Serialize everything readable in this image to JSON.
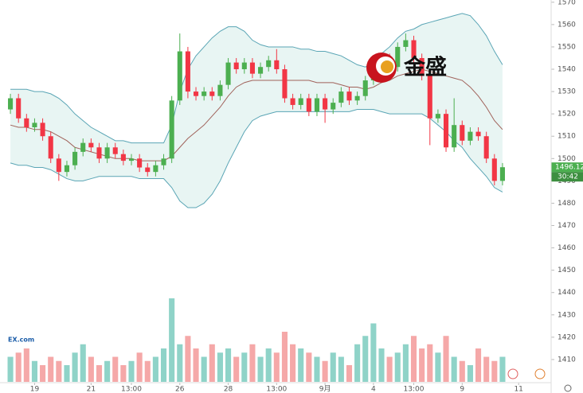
{
  "chart_data": {
    "type": "candlestick",
    "open": [
      1522,
      1527,
      1518,
      1514,
      1516,
      1510,
      1500,
      1494,
      1497,
      1503,
      1507,
      1505,
      1500,
      1505,
      1502,
      1499,
      1500,
      1496,
      1494,
      1497,
      1500,
      1526,
      1548,
      1530,
      1528,
      1530,
      1528,
      1533,
      1543,
      1540,
      1543,
      1538,
      1541,
      1544,
      1540,
      1527,
      1524,
      1527,
      1521,
      1527,
      1522,
      1525,
      1530,
      1526,
      1528,
      1535,
      1543,
      1545,
      1541,
      1550,
      1553,
      1545,
      1537,
      1518,
      1520,
      1505,
      1515,
      1508,
      1512,
      1510,
      1500,
      1490
    ],
    "high": [
      1529,
      1529,
      1520,
      1518,
      1518,
      1512,
      1502,
      1499,
      1505,
      1509,
      1509,
      1507,
      1507,
      1507,
      1504,
      1502,
      1502,
      1498,
      1499,
      1502,
      1528,
      1556,
      1550,
      1532,
      1532,
      1532,
      1535,
      1545,
      1545,
      1545,
      1545,
      1543,
      1546,
      1549,
      1542,
      1529,
      1529,
      1529,
      1529,
      1529,
      1527,
      1532,
      1532,
      1530,
      1537,
      1545,
      1547,
      1547,
      1552,
      1556,
      1555,
      1547,
      1539,
      1522,
      1522,
      1527,
      1517,
      1514,
      1514,
      1512,
      1502,
      1498
    ],
    "low": [
      1520,
      1516,
      1512,
      1512,
      1508,
      1498,
      1490,
      1492,
      1495,
      1501,
      1503,
      1498,
      1498,
      1500,
      1497,
      1497,
      1494,
      1492,
      1492,
      1495,
      1498,
      1524,
      1527,
      1526,
      1526,
      1526,
      1526,
      1531,
      1538,
      1538,
      1536,
      1536,
      1539,
      1538,
      1525,
      1522,
      1522,
      1519,
      1519,
      1516,
      1520,
      1523,
      1524,
      1524,
      1526,
      1533,
      1541,
      1539,
      1539,
      1548,
      1543,
      1535,
      1506,
      1516,
      1503,
      1503,
      1506,
      1506,
      1508,
      1498,
      1488,
      1488
    ],
    "close": [
      1527,
      1518,
      1514,
      1516,
      1510,
      1500,
      1494,
      1497,
      1503,
      1507,
      1505,
      1500,
      1505,
      1502,
      1499,
      1500,
      1496,
      1494,
      1497,
      1500,
      1526,
      1548,
      1530,
      1528,
      1530,
      1528,
      1533,
      1543,
      1540,
      1543,
      1538,
      1541,
      1544,
      1540,
      1527,
      1524,
      1527,
      1521,
      1527,
      1522,
      1525,
      1530,
      1526,
      1528,
      1535,
      1543,
      1545,
      1541,
      1550,
      1553,
      1545,
      1537,
      1518,
      1520,
      1505,
      1515,
      1508,
      1512,
      1510,
      1500,
      1490,
      1496.12
    ],
    "volume": [
      30,
      35,
      40,
      25,
      20,
      30,
      25,
      20,
      35,
      45,
      30,
      20,
      25,
      30,
      20,
      25,
      35,
      25,
      30,
      40,
      100,
      45,
      55,
      40,
      30,
      45,
      35,
      40,
      30,
      35,
      45,
      30,
      40,
      35,
      60,
      45,
      40,
      35,
      30,
      25,
      35,
      30,
      20,
      45,
      55,
      70,
      40,
      30,
      35,
      45,
      55,
      40,
      45,
      35,
      55,
      30,
      25,
      20,
      40,
      30,
      25,
      30
    ],
    "up_color": "#4caf50",
    "down_color": "#f23645",
    "volume_up_color": "#8fd3c8",
    "volume_down_color": "#f5a8a8",
    "bands": {
      "upper": [
        1531,
        1531,
        1531,
        1530,
        1530,
        1529,
        1527,
        1524,
        1520,
        1517,
        1514,
        1512,
        1510,
        1508,
        1508,
        1507,
        1507,
        1507,
        1507,
        1507,
        1515,
        1530,
        1540,
        1546,
        1550,
        1554,
        1557,
        1559,
        1559,
        1557,
        1553,
        1551,
        1550,
        1550,
        1550,
        1550,
        1549,
        1549,
        1548,
        1548,
        1547,
        1546,
        1544,
        1542,
        1541,
        1543,
        1547,
        1550,
        1554,
        1557,
        1558,
        1560,
        1561,
        1562,
        1563,
        1564,
        1565,
        1564,
        1560,
        1555,
        1548,
        1542
      ],
      "middle": [
        1515,
        1514,
        1514,
        1513,
        1513,
        1512,
        1510,
        1508,
        1505,
        1504,
        1503,
        1502,
        1501,
        1500,
        1500,
        1500,
        1499,
        1499,
        1499,
        1499,
        1501,
        1505,
        1509,
        1512,
        1515,
        1519,
        1523,
        1528,
        1532,
        1534,
        1535,
        1535,
        1535,
        1535,
        1535,
        1535,
        1535,
        1535,
        1534,
        1534,
        1534,
        1533,
        1532,
        1532,
        1531,
        1532,
        1534,
        1535,
        1537,
        1538,
        1539,
        1540,
        1539,
        1538,
        1537,
        1536,
        1535,
        1532,
        1528,
        1523,
        1517,
        1513
      ],
      "lower": [
        1498,
        1497,
        1497,
        1496,
        1496,
        1495,
        1493,
        1491,
        1490,
        1490,
        1491,
        1492,
        1492,
        1492,
        1492,
        1492,
        1491,
        1491,
        1491,
        1491,
        1487,
        1481,
        1478,
        1478,
        1480,
        1484,
        1490,
        1498,
        1505,
        1512,
        1517,
        1519,
        1520,
        1521,
        1521,
        1521,
        1521,
        1521,
        1521,
        1521,
        1521,
        1521,
        1521,
        1522,
        1522,
        1522,
        1521,
        1520,
        1520,
        1520,
        1520,
        1520,
        1518,
        1515,
        1512,
        1508,
        1505,
        1500,
        1496,
        1492,
        1487,
        1485
      ],
      "band_color": "#5aa5b5",
      "middle_color": "#a0625a",
      "fill_color": "#e8f5f3"
    },
    "ylim": [
      1400,
      1571
    ],
    "yticks": [
      1410,
      1420,
      1430,
      1440,
      1450,
      1460,
      1470,
      1480,
      1490,
      1500,
      1510,
      1520,
      1530,
      1540,
      1550,
      1560,
      1570
    ],
    "xticks": [
      {
        "value": 3,
        "label": "19"
      },
      {
        "value": 10,
        "label": "21"
      },
      {
        "value": 15,
        "label": "13:00"
      },
      {
        "value": 21,
        "label": "26"
      },
      {
        "value": 27,
        "label": "28"
      },
      {
        "value": 33,
        "label": "13:00"
      },
      {
        "value": 39,
        "label": "9月"
      },
      {
        "value": 45,
        "label": "4"
      },
      {
        "value": 50,
        "label": "13:00"
      },
      {
        "value": 56,
        "label": "9"
      },
      {
        "value": 63,
        "label": "11"
      }
    ],
    "last_price": 1496.12,
    "countdown": "30:42",
    "watermark": "金盛",
    "logo_text": "EX.com"
  }
}
